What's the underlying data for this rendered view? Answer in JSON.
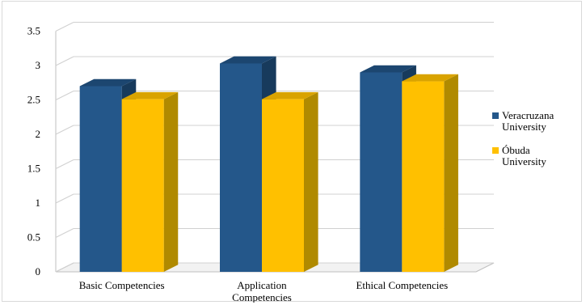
{
  "chart_data": {
    "type": "bar",
    "style": "3d-clustered-column",
    "categories": [
      [
        "Basic Competencies"
      ],
      [
        "Application",
        "Competencies"
      ],
      [
        "Ethical Competencies"
      ]
    ],
    "series": [
      {
        "name": [
          "Veracruzana",
          "University"
        ],
        "values": [
          2.7,
          3.03,
          2.9
        ],
        "color": "#24578a",
        "side_color": "#173a5c",
        "top_color": "#1c4670"
      },
      {
        "name": [
          "Óbuda",
          "University"
        ],
        "values": [
          2.51,
          2.51,
          2.77
        ],
        "color": "#ffc000",
        "side_color": "#b08a00",
        "top_color": "#d9a300"
      }
    ],
    "yticks": [
      "0",
      "0.5",
      "1",
      "1.5",
      "2",
      "2.5",
      "3",
      "3.5"
    ],
    "ylim": [
      0,
      3.5
    ],
    "grid": true,
    "legend_position": "right"
  }
}
